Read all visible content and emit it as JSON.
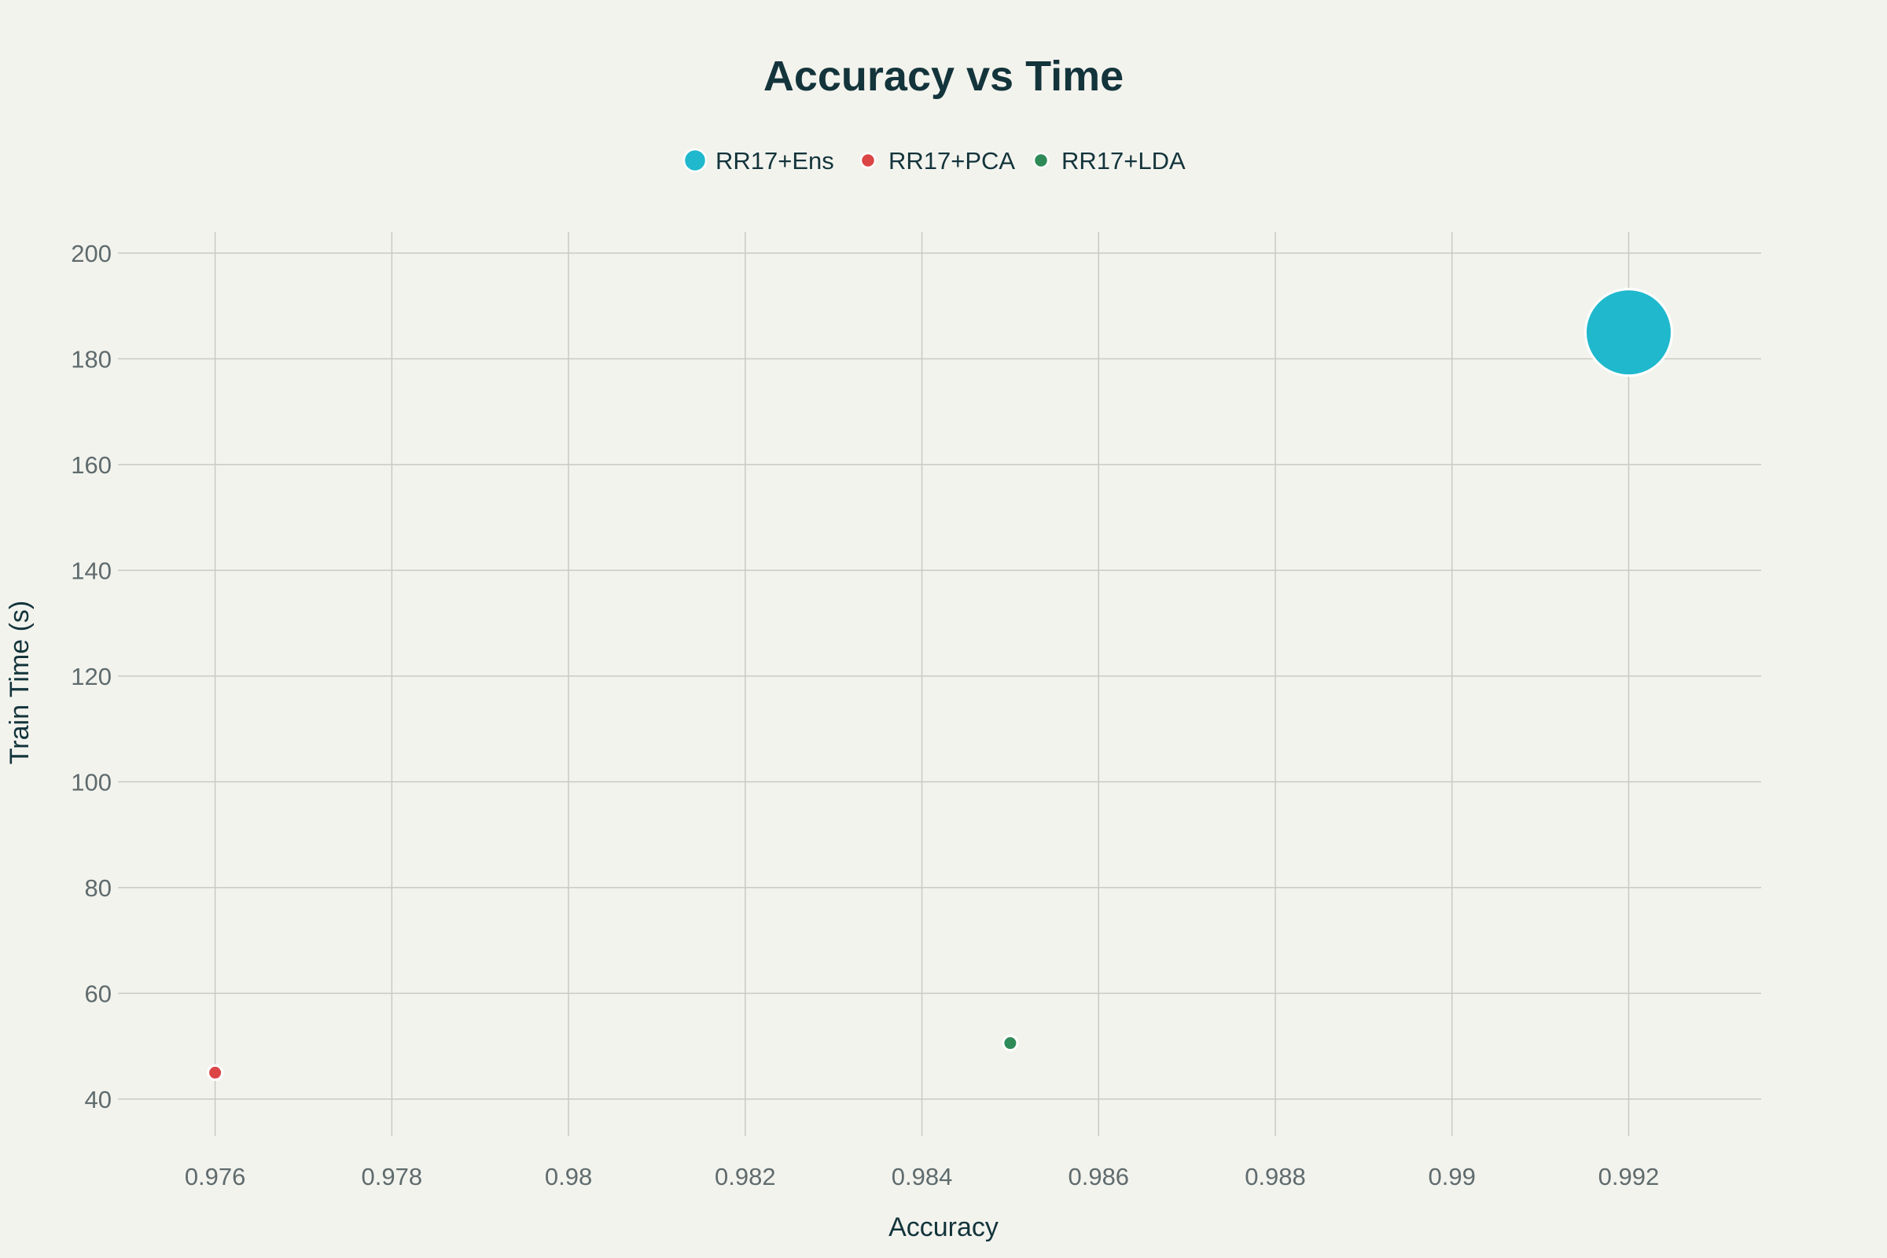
{
  "chart_data": {
    "type": "scatter",
    "title": "Accuracy vs Time",
    "xlabel": "Accuracy",
    "ylabel": "Train Time (s)",
    "xlim": [
      0.9749,
      0.9935
    ],
    "ylim": [
      33,
      204
    ],
    "xticks": [
      0.976,
      0.978,
      0.98,
      0.982,
      0.984,
      0.986,
      0.988,
      0.99,
      0.992
    ],
    "xtick_labels": [
      "0.976",
      "0.978",
      "0.98",
      "0.982",
      "0.984",
      "0.986",
      "0.988",
      "0.99",
      "0.992"
    ],
    "yticks": [
      40,
      60,
      80,
      100,
      120,
      140,
      160,
      180,
      200
    ],
    "ytick_labels": [
      "40",
      "60",
      "80",
      "100",
      "120",
      "140",
      "160",
      "180",
      "200"
    ],
    "grid": true,
    "legend_position": "top-center",
    "series": [
      {
        "name": "RR17+Ens",
        "color": "#1fb8cd",
        "x": [
          0.992
        ],
        "y": [
          185
        ],
        "size": 185
      },
      {
        "name": "RR17+PCA",
        "color": "#db4545",
        "x": [
          0.976
        ],
        "y": [
          45
        ],
        "size": 45
      },
      {
        "name": "RR17+LDA",
        "color": "#2e8b57",
        "x": [
          0.985
        ],
        "y": [
          50.6
        ],
        "size": 50.6
      }
    ]
  }
}
